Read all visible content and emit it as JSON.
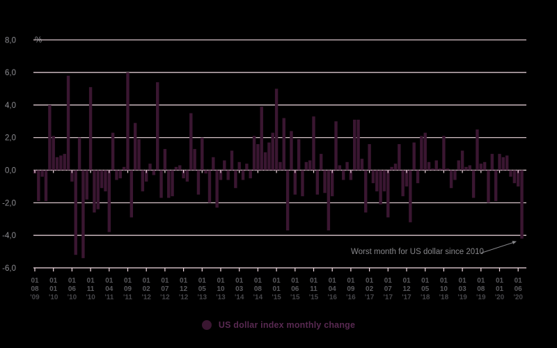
{
  "legend": {
    "label": "US dollar index monthly change"
  },
  "annotation": {
    "text": "Worst month for US dollar since 2010"
  },
  "chart_data": {
    "type": "bar",
    "unit_label": "%",
    "series": [
      {
        "name": "US dollar index monthly change",
        "start_month": "2009-08",
        "end_month": "2020-07",
        "values": [
          -0.2,
          -1.9,
          -0.4,
          -1.9,
          4.0,
          2.1,
          0.8,
          0.9,
          1.0,
          5.8,
          -0.7,
          -5.2,
          2.0,
          -5.4,
          -1.8,
          5.1,
          -2.6,
          -2.4,
          -1.1,
          -1.3,
          -3.8,
          2.3,
          -0.6,
          -0.5,
          0.2,
          6.0,
          -2.9,
          2.9,
          1.9,
          -1.3,
          -0.7,
          0.4,
          -0.3,
          5.4,
          -1.7,
          1.3,
          -1.7,
          -1.6,
          0.2,
          0.3,
          -0.5,
          -0.7,
          3.5,
          1.3,
          -1.5,
          2.0,
          -0.2,
          -2.0,
          0.8,
          -2.3,
          -0.6,
          0.6,
          -0.6,
          1.2,
          -1.1,
          0.5,
          -0.6,
          0.4,
          -0.5,
          2.1,
          1.6,
          3.9,
          1.1,
          1.7,
          2.3,
          5.0,
          0.5,
          3.2,
          -3.7,
          2.4,
          -1.5,
          1.9,
          -1.6,
          0.5,
          0.6,
          3.3,
          -1.5,
          1.0,
          -1.4,
          -3.7,
          -1.6,
          3.0,
          0.3,
          -0.6,
          0.5,
          -0.6,
          3.1,
          3.1,
          0.7,
          -2.6,
          1.6,
          -0.8,
          -1.3,
          -2.1,
          -1.3,
          -2.9,
          0.2,
          0.4,
          1.6,
          -1.6,
          -1.0,
          -3.2,
          1.7,
          -0.8,
          2.1,
          2.3,
          0.5,
          0.1,
          0.6,
          0.1,
          2.1,
          0.1,
          -1.1,
          -0.6,
          0.6,
          1.2,
          0.2,
          0.3,
          -1.7,
          2.5,
          0.4,
          0.5,
          -2.0,
          1.0,
          -1.9,
          1.0,
          0.8,
          0.9,
          -0.4,
          -0.8,
          -1.0,
          -4.2
        ]
      }
    ],
    "ylim": [
      -6,
      8
    ],
    "grid": true,
    "legend_position": "bottom",
    "y_ticks": [
      {
        "v": 8,
        "label": "8,0"
      },
      {
        "v": 6,
        "label": "6,0"
      },
      {
        "v": 4,
        "label": "4,0"
      },
      {
        "v": 2,
        "label": "2,0"
      },
      {
        "v": 0,
        "label": "0,0"
      },
      {
        "v": -2,
        "label": "-2,0"
      },
      {
        "v": -4,
        "label": "-4,0"
      },
      {
        "v": -6,
        "label": "-6,0"
      }
    ],
    "x_tick_every_months": 5,
    "x_ticks": [
      {
        "d": "01",
        "m": "08",
        "y": "'09"
      },
      {
        "d": "01",
        "m": "01",
        "y": "'10"
      },
      {
        "d": "01",
        "m": "06",
        "y": "'10"
      },
      {
        "d": "01",
        "m": "11",
        "y": "'10"
      },
      {
        "d": "01",
        "m": "04",
        "y": "'11"
      },
      {
        "d": "01",
        "m": "09",
        "y": "'11"
      },
      {
        "d": "01",
        "m": "02",
        "y": "'12"
      },
      {
        "d": "01",
        "m": "07",
        "y": "'12"
      },
      {
        "d": "01",
        "m": "12",
        "y": "'12"
      },
      {
        "d": "01",
        "m": "05",
        "y": "'13"
      },
      {
        "d": "01",
        "m": "10",
        "y": "'13"
      },
      {
        "d": "01",
        "m": "03",
        "y": "'14"
      },
      {
        "d": "01",
        "m": "08",
        "y": "'14"
      },
      {
        "d": "01",
        "m": "01",
        "y": "'15"
      },
      {
        "d": "01",
        "m": "06",
        "y": "'15"
      },
      {
        "d": "01",
        "m": "11",
        "y": "'15"
      },
      {
        "d": "01",
        "m": "04",
        "y": "'16"
      },
      {
        "d": "01",
        "m": "09",
        "y": "'16"
      },
      {
        "d": "01",
        "m": "02",
        "y": "'17"
      },
      {
        "d": "01",
        "m": "07",
        "y": "'17"
      },
      {
        "d": "01",
        "m": "12",
        "y": "'17"
      },
      {
        "d": "01",
        "m": "05",
        "y": "'18"
      },
      {
        "d": "01",
        "m": "10",
        "y": "'18"
      },
      {
        "d": "01",
        "m": "03",
        "y": "'19"
      },
      {
        "d": "01",
        "m": "08",
        "y": "'19"
      },
      {
        "d": "01",
        "m": "01",
        "y": "'20"
      },
      {
        "d": "01",
        "m": "06",
        "y": "'20"
      }
    ],
    "colors": {
      "background": "#000000",
      "bar": "#3a1631",
      "grid": "#f3dce3",
      "y_label": "#8d8d92",
      "x_label_day_month": "#59595d",
      "x_label_year": "#46464a",
      "annotation": "#87878b",
      "legend_text": "#582951"
    }
  }
}
